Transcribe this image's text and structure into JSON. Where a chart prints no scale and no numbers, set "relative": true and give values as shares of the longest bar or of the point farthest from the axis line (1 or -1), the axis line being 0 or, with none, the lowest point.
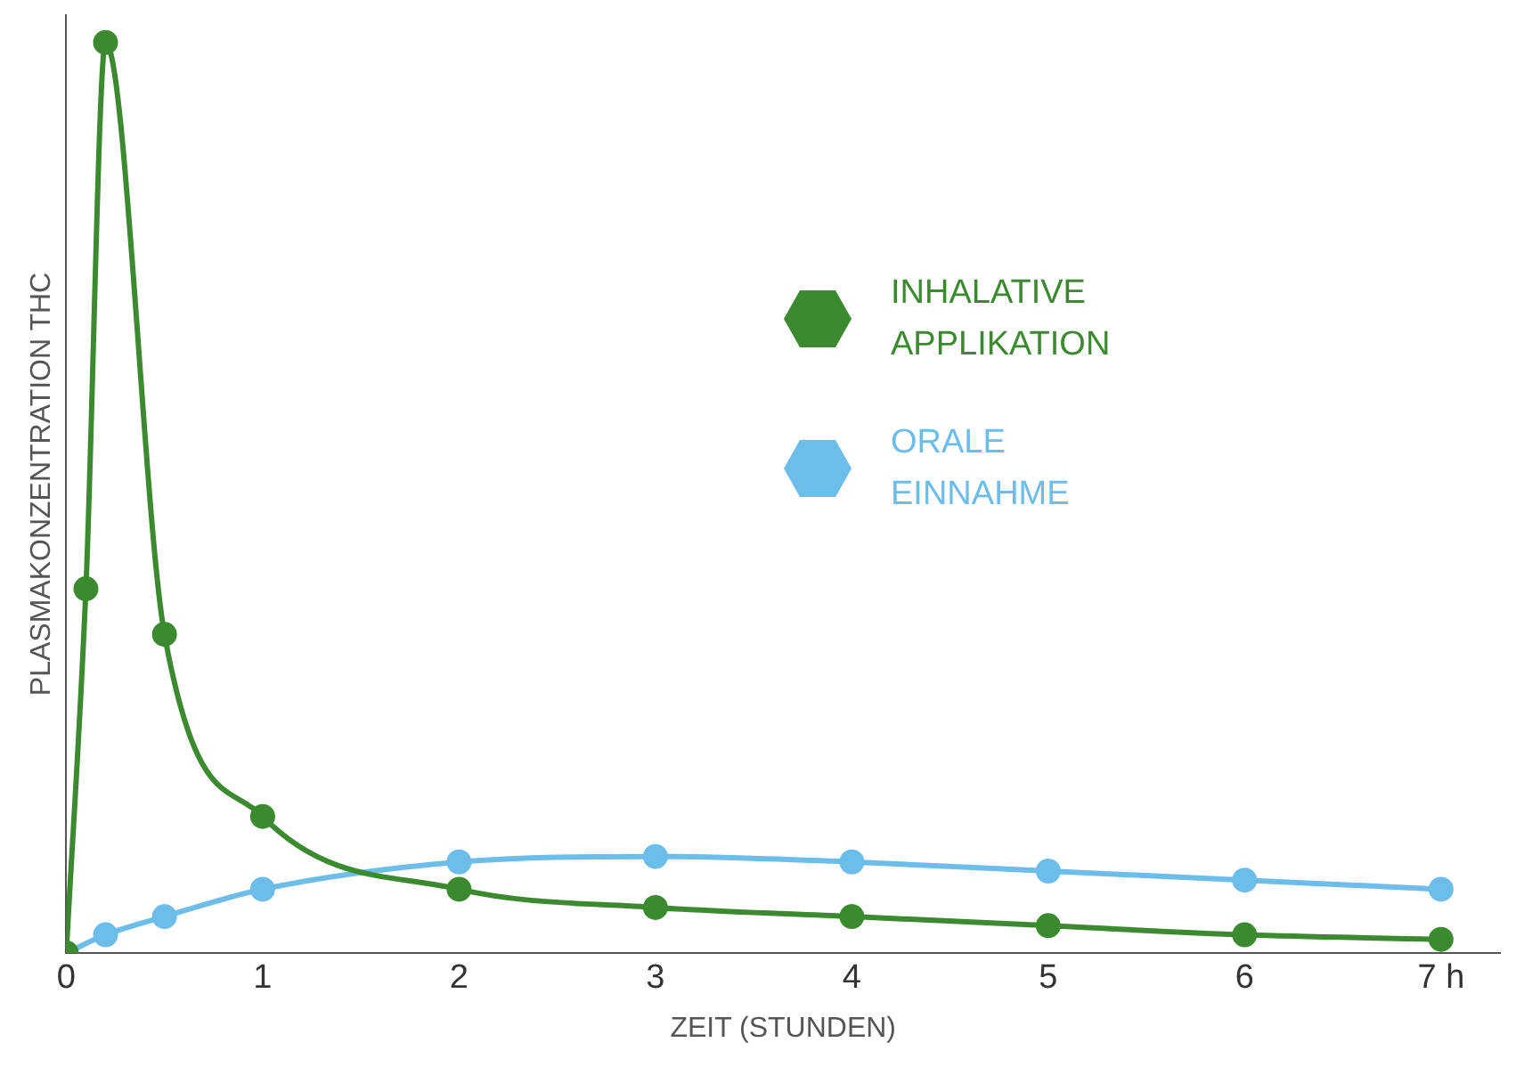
{
  "chart_data": {
    "type": "line",
    "xlabel": "ZEIT (STUNDEN)",
    "ylabel": "PLASMAKONZENTRATION THC",
    "relative": true,
    "xlim": [
      0,
      7.3
    ],
    "xticks": [
      0,
      1,
      2,
      3,
      4,
      5,
      6,
      {
        "value": 7,
        "label": "7 h"
      }
    ],
    "tick_labels": "x",
    "grid": false,
    "legend": "top right",
    "marker": "circle",
    "line_style": "solid",
    "series": [
      {
        "name": "INHALATIVE APPLIKATION",
        "color": "#3b8a2f",
        "x": [
          0,
          0.1,
          0.2,
          0.5,
          1,
          2,
          3,
          4,
          5,
          6,
          7
        ],
        "values": [
          0,
          0.4,
          1,
          0.35,
          0.15,
          0.07,
          0.05,
          0.04,
          0.03,
          0.02,
          0.015
        ]
      },
      {
        "name": "ORALE EINNAHME",
        "color": "#6cbde9",
        "x": [
          0,
          0.2,
          0.5,
          1,
          2,
          3,
          4,
          5,
          6,
          7
        ],
        "values": [
          0,
          0.02,
          0.04,
          0.07,
          0.1,
          0.106,
          0.1,
          0.09,
          0.08,
          0.07
        ]
      }
    ]
  }
}
